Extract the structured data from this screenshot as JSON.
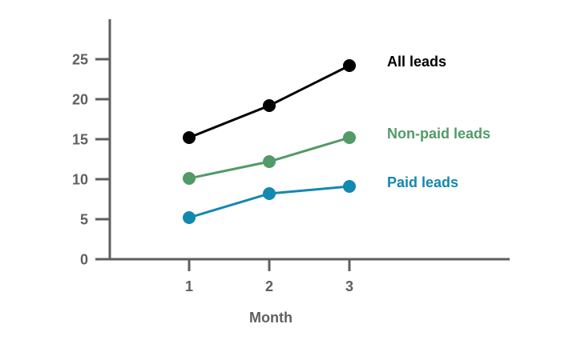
{
  "chart_data": {
    "type": "line",
    "title": "",
    "xlabel": "Month",
    "ylabel": "",
    "x": [
      1,
      2,
      3
    ],
    "x_tick_labels": [
      "1",
      "2",
      "3"
    ],
    "xlim": [
      0,
      5
    ],
    "ylim": [
      0,
      29
    ],
    "y_ticks": [
      0,
      5,
      10,
      15,
      20,
      25
    ],
    "y_tick_labels": [
      "0",
      "5",
      "10",
      "15",
      "20",
      "25"
    ],
    "grid": false,
    "legend": "direct labels at line ends (right)",
    "series": [
      {
        "name": "All leads",
        "values": [
          15.2,
          19.2,
          24.2
        ],
        "color": "#000000"
      },
      {
        "name": "Non-paid leads",
        "values": [
          10.1,
          12.2,
          15.2
        ],
        "color": "#529a68"
      },
      {
        "name": "Paid leads",
        "values": [
          5.2,
          8.2,
          9.1
        ],
        "color": "#1388b0"
      }
    ]
  }
}
